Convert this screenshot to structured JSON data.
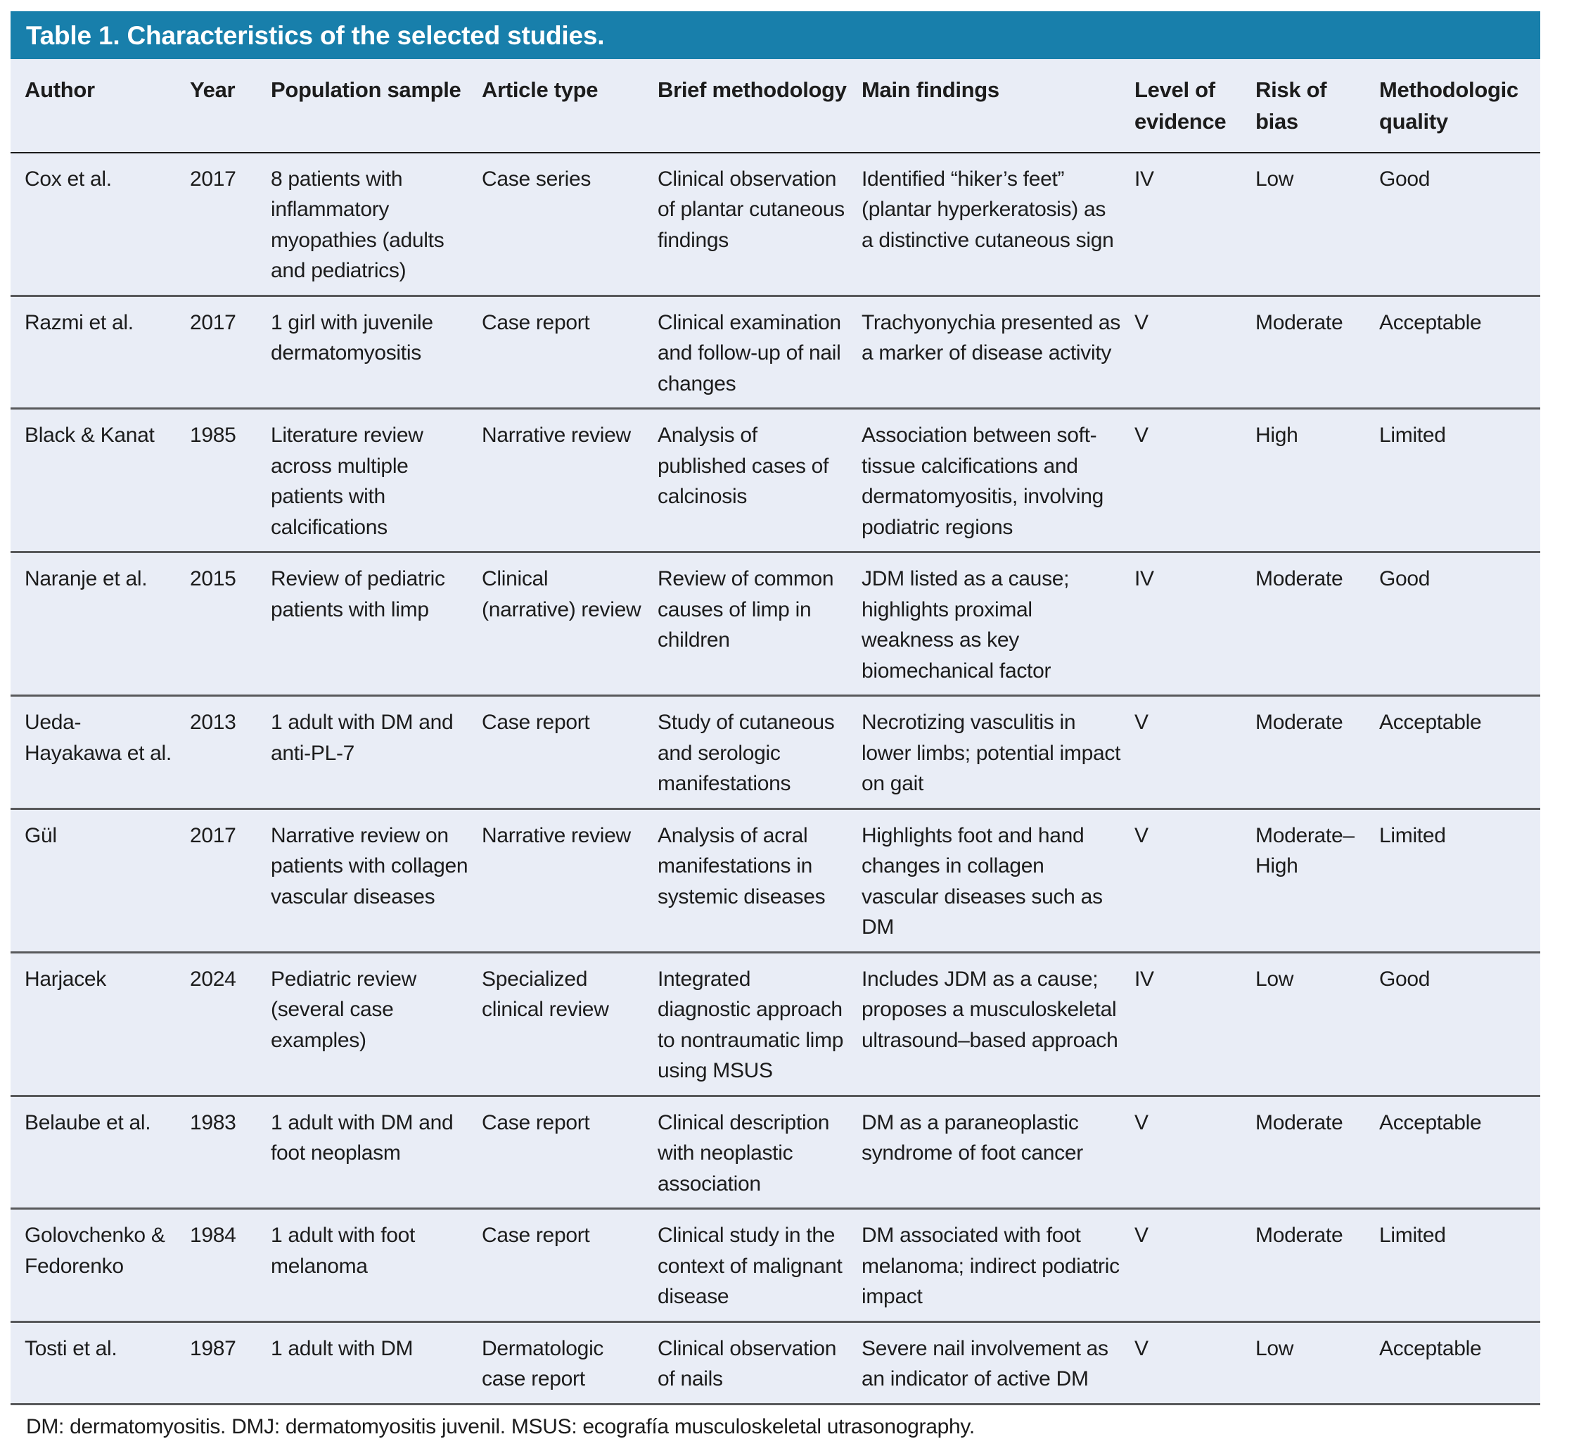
{
  "title": "Table 1. Characteristics of the selected studies.",
  "footnote": "DM: dermatomyositis. DMJ: dermatomyositis juvenil. MSUS: ecografía musculoskeletal utrasonography.",
  "colors": {
    "title_bar_bg": "#187fab",
    "title_text": "#ffffff",
    "table_bg": "#e9edf6",
    "row_divider": "#58595b",
    "header_divider": "#1a1a1a",
    "body_text": "#1c1c1c"
  },
  "columns": [
    "Author",
    "Year",
    "Population sample",
    "Article type",
    "Brief methodology",
    "Main findings",
    "Level of evidence",
    "Risk of bias",
    "Methodologic quality"
  ],
  "rows": [
    {
      "author": "Cox et al.",
      "year": "2017",
      "population": "8 patients with inflammatory myopathies (adults and pediatrics)",
      "article_type": "Case series",
      "methodology": "Clinical observation of plantar cutaneous findings",
      "findings": "Identified “hiker’s feet” (plantar hyperkeratosis) as a distinctive cutaneous sign",
      "evidence": "IV",
      "bias": "Low",
      "quality": "Good"
    },
    {
      "author": "Razmi et al.",
      "year": "2017",
      "population": "1 girl with juvenile dermatomyositis",
      "article_type": "Case report",
      "methodology": "Clinical examination and follow-up of nail changes",
      "findings": "Trachyonychia presented as a marker of disease activity",
      "evidence": "V",
      "bias": "Moderate",
      "quality": "Acceptable"
    },
    {
      "author": "Black & Kanat",
      "year": "1985",
      "population": "Literature review across multiple patients with calcifications",
      "article_type": "Narrative review",
      "methodology": "Analysis of published cases of calcinosis",
      "findings": "Association between soft-tissue calcifications and dermatomyositis, involving podiatric regions",
      "evidence": "V",
      "bias": "High",
      "quality": "Limited"
    },
    {
      "author": "Naranje et al.",
      "year": "2015",
      "population": "Review of pediatric patients with limp",
      "article_type": "Clinical (narrative) review",
      "methodology": "Review of common causes of limp in children",
      "findings": "JDM listed as a cause; highlights proximal weakness as key biomechanical factor",
      "evidence": "IV",
      "bias": "Moderate",
      "quality": "Good"
    },
    {
      "author": "Ueda-Hayakawa et al.",
      "year": "2013",
      "population": "1 adult with DM and anti-PL-7",
      "article_type": "Case report",
      "methodology": "Study of cutaneous and serologic manifestations",
      "findings": "Necrotizing vasculitis in lower limbs; potential impact on gait",
      "evidence": "V",
      "bias": "Moderate",
      "quality": "Acceptable"
    },
    {
      "author": "Gül",
      "year": "2017",
      "population": "Narrative review on patients with collagen vascular diseases",
      "article_type": "Narrative review",
      "methodology": "Analysis of acral manifestations in systemic diseases",
      "findings": "Highlights foot and hand changes in collagen vascular diseases such as DM",
      "evidence": "V",
      "bias": "Moderate–High",
      "quality": "Limited"
    },
    {
      "author": "Harjacek",
      "year": "2024",
      "population": "Pediatric review (several case examples)",
      "article_type": "Specialized clinical review",
      "methodology": "Integrated diagnostic approach to nontraumatic limp using MSUS",
      "findings": "Includes JDM as a cause; proposes a musculoskeletal ultrasound–based approach",
      "evidence": "IV",
      "bias": "Low",
      "quality": "Good"
    },
    {
      "author": "Belaube et al.",
      "year": "1983",
      "population": "1 adult with DM and foot neoplasm",
      "article_type": "Case report",
      "methodology": "Clinical description with neoplastic association",
      "findings": "DM as a paraneoplastic syndrome of foot cancer",
      "evidence": "V",
      "bias": "Moderate",
      "quality": "Acceptable"
    },
    {
      "author": "Golovchenko & Fedorenko",
      "year": "1984",
      "population": "1 adult with foot melanoma",
      "article_type": "Case report",
      "methodology": "Clinical study in the context of malignant disease",
      "findings": "DM associated with foot melanoma; indirect podiatric impact",
      "evidence": "V",
      "bias": "Moderate",
      "quality": "Limited"
    },
    {
      "author": "Tosti et al.",
      "year": "1987",
      "population": "1 adult with DM",
      "article_type": "Dermatologic case report",
      "methodology": "Clinical observation of nails",
      "findings": "Severe nail involvement as an indicator of active DM",
      "evidence": "V",
      "bias": "Low",
      "quality": "Acceptable"
    }
  ]
}
